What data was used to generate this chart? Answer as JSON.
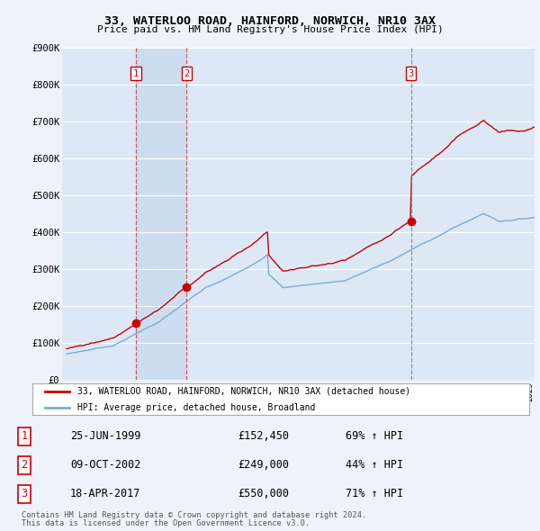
{
  "title": "33, WATERLOO ROAD, HAINFORD, NORWICH, NR10 3AX",
  "subtitle": "Price paid vs. HM Land Registry's House Price Index (HPI)",
  "ylim": [
    0,
    900000
  ],
  "yticks": [
    0,
    100000,
    200000,
    300000,
    400000,
    500000,
    600000,
    700000,
    800000,
    900000
  ],
  "ytick_labels": [
    "£0",
    "£100K",
    "£200K",
    "£300K",
    "£400K",
    "£500K",
    "£600K",
    "£700K",
    "£800K",
    "£900K"
  ],
  "xlim_start": 1994.7,
  "xlim_end": 2025.3,
  "background_color": "#eef2fa",
  "plot_bg_color": "#dce8f5",
  "highlight_bg_color": "#ccddf0",
  "grid_color": "#ffffff",
  "legend_label_red": "33, WATERLOO ROAD, HAINFORD, NORWICH, NR10 3AX (detached house)",
  "legend_label_blue": "HPI: Average price, detached house, Broadland",
  "footer1": "Contains HM Land Registry data © Crown copyright and database right 2024.",
  "footer2": "This data is licensed under the Open Government Licence v3.0.",
  "sales": [
    {
      "num": 1,
      "year": 1999.48,
      "price": 152450,
      "date": "25-JUN-1999",
      "label_price": "£152,450",
      "label_pct": "69% ↑ HPI"
    },
    {
      "num": 2,
      "year": 2002.77,
      "price": 249000,
      "date": "09-OCT-2002",
      "label_price": "£249,000",
      "label_pct": "44% ↑ HPI"
    },
    {
      "num": 3,
      "year": 2017.29,
      "price": 550000,
      "date": "18-APR-2017",
      "label_price": "£550,000",
      "label_pct": "71% ↑ HPI"
    }
  ],
  "red_line_color": "#cc0000",
  "blue_line_color": "#7aadd4",
  "dashed_red_color": "#dd4444",
  "dashed_gray_color": "#888888"
}
